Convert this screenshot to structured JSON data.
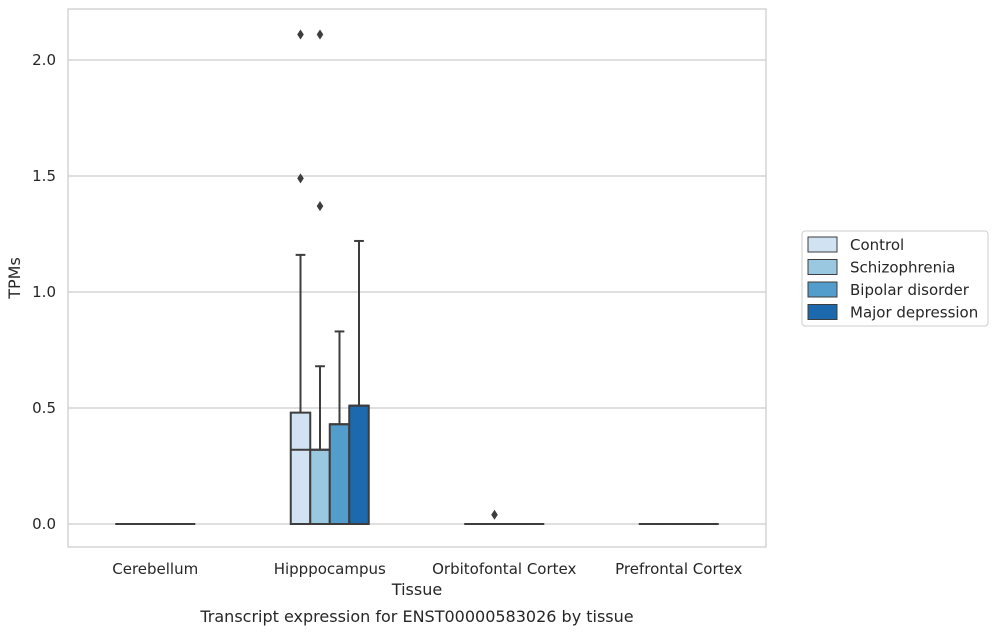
{
  "chart_data": {
    "type": "box",
    "title": "",
    "xlabel": "Tissue",
    "ylabel": "TPMs",
    "caption": "Transcript expression for ENST00000583026 by tissue",
    "categories": [
      "Cerebellum",
      "Hipppocampus",
      "Orbitofontal Cortex",
      "Prefrontal Cortex"
    ],
    "yticks": [
      0.0,
      0.5,
      1.0,
      1.5,
      2.0
    ],
    "ytick_labels": [
      "0.0",
      "0.5",
      "1.0",
      "1.5",
      "2.0"
    ],
    "ylim": [
      -0.105,
      2.22
    ],
    "grid": "horizontal",
    "legend_position": "right",
    "series": [
      {
        "name": "Control",
        "color": "#d1e2f2",
        "boxes": [
          {
            "q1": 0,
            "median": 0,
            "q3": 0,
            "whisker_low": 0,
            "whisker_high": 0,
            "outliers": []
          },
          {
            "q1": 0,
            "median": 0.32,
            "q3": 0.48,
            "whisker_low": 0,
            "whisker_high": 1.16,
            "outliers": [
              1.49,
              2.11
            ]
          },
          {
            "q1": 0,
            "median": 0,
            "q3": 0,
            "whisker_low": 0,
            "whisker_high": 0,
            "outliers": []
          },
          {
            "q1": 0,
            "median": 0,
            "q3": 0,
            "whisker_low": 0,
            "whisker_high": 0,
            "outliers": []
          }
        ]
      },
      {
        "name": "Schizophrenia",
        "color": "#9ac8e0",
        "boxes": [
          {
            "q1": 0,
            "median": 0,
            "q3": 0,
            "whisker_low": 0,
            "whisker_high": 0,
            "outliers": []
          },
          {
            "q1": 0,
            "median": 0.32,
            "q3": 0.32,
            "whisker_low": 0,
            "whisker_high": 0.68,
            "outliers": [
              1.37,
              2.11
            ]
          },
          {
            "q1": 0,
            "median": 0,
            "q3": 0,
            "whisker_low": 0,
            "whisker_high": 0,
            "outliers": [
              0.04
            ]
          },
          {
            "q1": 0,
            "median": 0,
            "q3": 0,
            "whisker_low": 0,
            "whisker_high": 0,
            "outliers": []
          }
        ]
      },
      {
        "name": "Bipolar disorder",
        "color": "#529dcc",
        "boxes": [
          {
            "q1": 0,
            "median": 0,
            "q3": 0,
            "whisker_low": 0,
            "whisker_high": 0,
            "outliers": []
          },
          {
            "q1": 0,
            "median": 0.43,
            "q3": 0.43,
            "whisker_low": 0,
            "whisker_high": 0.83,
            "outliers": []
          },
          {
            "q1": 0,
            "median": 0,
            "q3": 0,
            "whisker_low": 0,
            "whisker_high": 0,
            "outliers": []
          },
          {
            "q1": 0,
            "median": 0,
            "q3": 0,
            "whisker_low": 0,
            "whisker_high": 0,
            "outliers": []
          }
        ]
      },
      {
        "name": "Major depression",
        "color": "#1c6aad",
        "boxes": [
          {
            "q1": 0,
            "median": 0,
            "q3": 0,
            "whisker_low": 0,
            "whisker_high": 0,
            "outliers": []
          },
          {
            "q1": 0,
            "median": 0.51,
            "q3": 0.51,
            "whisker_low": 0,
            "whisker_high": 1.22,
            "outliers": []
          },
          {
            "q1": 0,
            "median": 0,
            "q3": 0,
            "whisker_low": 0,
            "whisker_high": 0,
            "outliers": []
          },
          {
            "q1": 0,
            "median": 0,
            "q3": 0,
            "whisker_low": 0,
            "whisker_high": 0,
            "outliers": []
          }
        ]
      }
    ]
  }
}
